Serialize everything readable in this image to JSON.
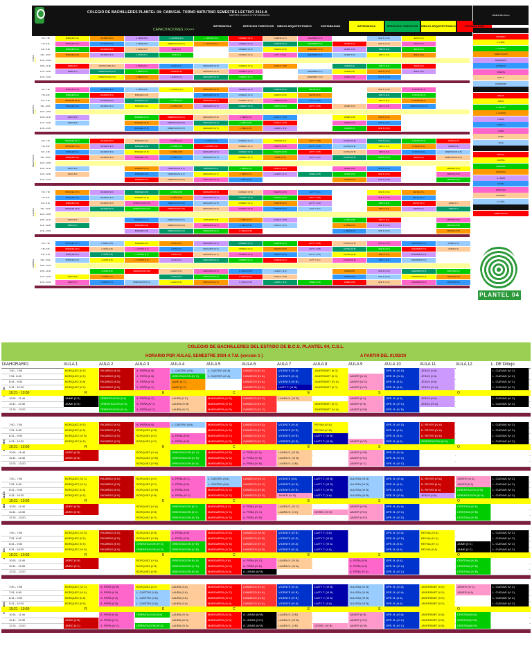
{
  "top_sheet": {
    "title": "COLEGIO DE BACHILLERES PLANTEL 04: CABUGAL TURNO MATUTINO SEMESTRE LECTIVO 2024-A",
    "subtitle": "MARTES CLASES IV INFORMADOS",
    "capacitaciones_label": "CAPACITACIONES >>>>>",
    "cap_tabs": [
      "INFORMATICA",
      "SERVICIOS TURISTICOS",
      "DIBUJO ARQUITECTONICO",
      "CONTABILIDAD",
      "INFORMATICA",
      "SERVICIOS TURISTICOS",
      "DIBUJO ARQUITECTONICO CONSTRUCCION",
      "CONTABILIDAD"
    ],
    "side_header": "SEMESTRE 2024-A",
    "logo_text": "PLANTEL 04"
  },
  "bottom_sheet": {
    "title": "COLEGIO DE BACHILLERES DEL ESTADO DE B.C.S. PLANTEL 04, C.S.L.",
    "subtitle_left": "HORARIO POR AULAS, SEMESTRE 2024-A  T.M.   (version 1 )",
    "subtitle_right": "A PARTIR DEL 01/02/24",
    "columns": [
      "DIA",
      "HORARIO",
      "AULA 1",
      "AULA 2",
      "AULA 3",
      "AULA 4",
      "AULA 5",
      "AULA 6",
      "AULA 7",
      "AULA 8",
      "AULA 9",
      "AULA 10",
      "AULA 11",
      "AULA 12",
      "L. DE Dibujo"
    ],
    "recess_letters": [
      "R",
      "E",
      "C",
      "E",
      "S",
      "O"
    ],
    "days": [
      "LUNES",
      "MARTES",
      "MIERCOLES",
      "JUEVES",
      "VIERNES"
    ],
    "times": [
      "7:00 - 7:50",
      "7:51- 8:40",
      "8:41 - 9:30",
      "9:31 - 10:20",
      "10:21 - 10:50",
      "10:51 - 11:40",
      "11:41 - 12:30",
      "12:31 - 13:20"
    ],
    "days_rows": [
      {
        "day": "LUNES",
        "rows": [
          [
            "BORQUEZ (II E)",
            "RICARDO (II D)",
            "A. PEÑA (II B)",
            "L. CASTRO (II A)",
            "L. CASTRO (VI A)",
            "CANSECO (IV A)",
            "VICENTE (IV A)",
            "JAVERSMET (II D)",
            "",
            "GPE. B. (VI D)",
            "JESUS (II A)",
            "",
            "L. CUEVAS (VI C)"
          ],
          [
            "BORQUEZ (II E)",
            "RICARDO (II D)",
            "A. PEÑA (II B)",
            "ORIENTACION (IV C)",
            "L. CASTRO (VI A)",
            "CANSECO (IV A)",
            "VICENTE (IV A)",
            "JAVERSMET (II D)",
            "JAVIER (IV A)",
            "GPE. B. (IV A)",
            "JESUS (II A)",
            "",
            "L. CUEVAS (VI C)"
          ],
          [
            "BORQUEZ (II A)",
            "RICARDO (II D)",
            "A. PEÑA (II B)",
            "JAVIE (II C)",
            "",
            "CANSECO (IV A)",
            "VICENTE (IV B)",
            "JAVERSMET (IV A)",
            "JAVIER (IV D)",
            "GPE. B. (II A)",
            "JESUS (II A)",
            "",
            "L. CUEVAS (VI C)"
          ],
          [
            "BORQUEZ (II E)",
            "RICARDO (II D)",
            "A. PEÑA (II C)",
            "JAVIE (II C)",
            "",
            "CANSECO (IV A)",
            "LAITY T. (VI B)",
            "JAVERSMET (II C)",
            "JAVIER (IV D)",
            "GPE. B. (II A)",
            "JESUS (IV A)",
            "",
            "L. CUEVAS (VI C)"
          ],
          [
            "RECESO"
          ],
          [
            "JAIME (II D)",
            "ORIENTACION (II A)",
            "A. PEÑA (II C)",
            "LAURA (II C)",
            "MARGARITA (IV D)",
            "CANSECO (IV C)",
            "LAURA S. (VI B)",
            "",
            "JAVIER (II A)",
            "GPE. B. (II A)",
            "JESUS (II A)",
            "",
            "L. CUEVAS (VI C)"
          ],
          [
            "JAIME (II D)",
            "ORIENTACION (IV A)",
            "A. PEÑA (IV C)",
            "LAURA (IV B)",
            "MARGARITA (IV D)",
            "CANSECO (IV C)",
            "",
            "JAVERSMET (II C)",
            "JAVIER (II B)",
            "GPE. B. (VI C)",
            "JESUS (IV A)",
            "",
            "L. CUEVAS (VI C)"
          ],
          [
            "",
            "ORIENTACION (IV A)",
            "A. PEÑA (IV C)",
            "LAURA (IV C)",
            "MARGARITA (IV D)",
            "CANSECO (IV C)",
            "",
            "JAVERSMET (VI A)",
            "JAVIER (VI B)",
            "GPE. B. (IV B)",
            "",
            "",
            ""
          ]
        ]
      },
      {
        "day": "MARTES",
        "rows": [
          [
            "BORQUEZ (II E)",
            "RICARDO (II D)",
            "A. PEÑA (II B)",
            "L. CASTRO (II A)",
            "MARGARITA (IV D)",
            "CANSECO (IV A)",
            "VICENTE (IV A)",
            "REYNA (VI A)",
            "",
            "GPE. B. (VI D)",
            "D. REYES (IV A)",
            "",
            "L. CUEVAS (VI C)"
          ],
          [
            "BORQUEZ (II A)",
            "RICARDO (II D)",
            "BORQUEZ (II B)",
            "",
            "MARGARITA (IV D)",
            "CANSECO (IV C)",
            "VICENTE (IV B)",
            "REYNA (VI B)",
            "",
            "GPE. B. (II A)",
            "D. REYES (IV A)",
            "",
            "L. CUEVAS (VI C)"
          ],
          [
            "BORQUEZ (VI B)",
            "RICARDO (II D)",
            "BORQUEZ (II E)",
            "A. PEÑA (II B)",
            "MARGARITA (IV C)",
            "CANSECO (IV C)",
            "VICENTE (VI B)",
            "LAITY T. (VI B)",
            "",
            "GPE. B. (II A)",
            "D. REYES (IV A)",
            "",
            "L. CUEVAS (VI C)"
          ],
          [
            "BORQUEZ (II E)",
            "RICARDO (II D)",
            "BORQUEZ (II E)",
            "A. PEÑA (II B)",
            "MARGARITA (IV D)",
            "CANSECO (IV C)",
            "VICENTE (IV B)",
            "LAITY T. (VI B)",
            "JAVIER (IV D)",
            "GPE. B. (II A)",
            "ORIENTACION (IV A)",
            "",
            "L. CUEVAS (VI C)"
          ],
          [
            "RECESO"
          ],
          [
            "JAIRO (II B)",
            "",
            "BORQUEZ (VI A)",
            "ORIENTACION (IV C)",
            "MARGARITA (VI D)",
            "A. PEÑA (IV A)",
            "LAURA S. (IV B)",
            "",
            "JAVIER (VI B)",
            "GPE. B. (IV A)",
            "",
            "",
            ""
          ],
          [
            "JAIRO (II B)",
            "",
            "BORQUEZ (VI B)",
            "ORIENTACION (IV D)",
            "MARGARITA (IV D)",
            "A. PEÑA (VI B)",
            "LAURA S. (VI B)",
            "",
            "JAVIER (VI D)",
            "GPE. B. (VI C)",
            "",
            "",
            ""
          ],
          [
            "",
            "",
            "BORQUEZ (VI B)",
            "ORIENTACION (IV A)",
            "MARGARITA (IV D)",
            "A. PEÑA (IV B)",
            "LAURA S. (II B)",
            "",
            "JAVIER (II C)",
            "GPE. B. (VI C)",
            "",
            "",
            ""
          ]
        ]
      },
      {
        "day": "MIERCOLES",
        "rows": [
          [
            "BORQUEZ (VI C)",
            "RICARDO (II D)",
            "BORQUEZ (II E)",
            "A. PEÑA (II C)",
            "L. CASTRO (II A)",
            "CANSECO (IV C)",
            "VICENTE (II A)",
            "LAITY T. (VI B)",
            "JULISSA (VI B)",
            "GPE. B. (VI A)",
            "D. REYES (VI A)",
            "JAVIER (VI A)",
            "L. CUEVAS (VI C)"
          ],
          [
            "BORQUEZ (VI A)",
            "RICARDO (II D)",
            "BORQUEZ (II E)",
            "A. PEÑA (II B)",
            "L. CASTRO (II A)",
            "CANSECO (IV C)",
            "VICENTE (IV B)",
            "LAITY T. (VI D)",
            "JULISSA (VI B)",
            "GPE. B. (II A)",
            "D. REYES (II A)",
            "JAVIER (II A)",
            "L. CUEVAS (VI C)"
          ],
          [
            "BORQUEZ (II A)",
            "RICARDO (II D)",
            "BORQUEZ (VI B)",
            "A. PEÑA (II B)",
            "MARGARITA (IV C)",
            "CANSECO (IV D)",
            "VICENTE (IV B)",
            "LAITY T. (VI B)",
            "JULISSA (VI B)",
            "GPE. B. (II A)",
            "D. REYES (II A)",
            "ORIENTACION (II B)",
            "L. CUEVAS (VI C)"
          ],
          [
            "BORQUEZ (II E)",
            "RICARDO (II D)",
            "BORQUEZ (II B)",
            "A. PEÑA (IV C)",
            "MARGARITA (IV C)",
            "CANSECO (IV C)",
            "JAVIER (IV D)",
            "LAITY T. (II A)",
            "JULISSA (IV B)",
            "GPE. B. (VI A)",
            "JESUS (II A)",
            "ORIENTACION (IV A)",
            "L. CUEVAS (VI C)"
          ],
          [
            "RECESO"
          ],
          [
            "JAIRO (II B)",
            "",
            "BORQUEZ (VI A)",
            "ORIENTACION (II C)",
            "MARGARITA (II C)",
            "A. PEÑA (IV A)",
            "LAURA S. (IV C)",
            "",
            "JAVIER (IV B)",
            "GPE. B. (IV A)",
            "",
            "CRISTINA (IV A)",
            ""
          ],
          [
            "JAIRO (II B)",
            "",
            "BORQUEZ (II B)",
            "ORIENTACION (II C)",
            "MARGARITA (IV C)",
            "A. PEÑA (IV C)",
            "LAURA S. (II C)",
            "GISSEL (VI B)",
            "JAVIER (VI D)",
            "GPE. B. (VI C)",
            "",
            "CRISTINA (VI B)",
            ""
          ],
          [
            "",
            "",
            "BORQUEZ (II D)",
            "ORIENTACION (IV D)",
            "MARGARITA (IV D)",
            "A. PEÑA (IV B)",
            "",
            "",
            "JAVIER (VI D)",
            "GPE. B. (VI D)",
            "",
            "CRISTINA (IV B)",
            ""
          ]
        ]
      },
      {
        "day": "JUEVES",
        "rows": [
          [
            "BORQUEZ (VI D)",
            "RICARDO (II D)",
            "BORQUEZ (II B)",
            "A. PEÑA (II B)",
            "MARGARITA (VI D)",
            "CANSECO (VI B)",
            "VICENTE (IV B)",
            "LAITY T. (II A)",
            "",
            "GPE. B. (VI A)",
            "REYNA (VI A)",
            "",
            "L. CUEVAS (VI C)"
          ],
          [
            "BORQUEZ (II E)",
            "RICARDO (II D)",
            "BORQUEZ (VI B)",
            "A. PEÑA (II B)",
            "MARGARITA (IV D)",
            "CANSECO (IV B)",
            "VICENTE (IV B)",
            "LAITY T. (VI B)",
            "",
            "GPE. B. (VI D)",
            "REYNA (IV A)",
            "",
            "L. CUEVAS (VI C)"
          ],
          [
            "BORQUEZ (II E)",
            "RICARDO (II D)",
            "ORIENTACION (IV D)",
            "ORIENTACION (VI B)",
            "MARGARITA (IV D)",
            "CANSECO (IV C)",
            "VICENTE (IV A)",
            "LAITY T. (VI A)",
            "",
            "GPE. B. (II A)",
            "REYNA (IV C)",
            "JAIME (II C)",
            "L. CUEVAS (VI C)"
          ],
          [
            "BORQUEZ (VI B)",
            "RICARDO (II D)",
            "ORIENTACION (VI D)",
            "ORIENTACION (VI B)",
            "MARGARITA (IV D)",
            "CANSECO (VI B)",
            "VICENTE (IV A)",
            "LAITY T. (II A)",
            "",
            "GPE. B. (II A)",
            "REYNA (II A)",
            "JAIME (II C)",
            "L. CUEVAS (VI C)"
          ],
          [
            "RECESO"
          ],
          [
            "JAIRO (II B)",
            "",
            "BORQUEZ (VI A)",
            "ORIENTACION (IV A)",
            "MARGARITA (II B)",
            "A. PEÑA (IV C)",
            "LAURA S. (IV B)",
            "",
            "A. PEÑA (II B)",
            "GPE. B. (II A)",
            "",
            "CRISTINA (IV B)",
            ""
          ],
          [
            "JAIRO (II C)",
            "",
            "BORQUEZ (II B)",
            "ORIENTACION (VI D)",
            "MARGARITA (IV C)",
            "A. PEÑA (IV B)",
            "LAURA S. (IV A)",
            "",
            "A. PEÑA (II A)",
            "GPE. B. (VI C)",
            "",
            "CRISTINA (VI B)",
            ""
          ],
          [
            "",
            "",
            "BORQUEZ (II B)",
            "ORIENTACION (IV A)",
            "MARGARITA (IV A)",
            "G. URIAS (IV B)",
            "",
            "",
            "A. PEÑA (IV A)",
            "GPE. B. (VI C)",
            "",
            "CRISTINA (IV B)",
            ""
          ]
        ]
      },
      {
        "day": "VIERNES",
        "rows": [
          [
            "BORQUEZ (VI C)",
            "A. PEÑA (IV B)",
            "BORQUEZ (II E)",
            "LAURA (II A)",
            "MARGARITA (IV C)",
            "CANSECO (IV A)",
            "VICENTE (IV A)",
            "LAITY T. (VI B)",
            "JULISSA (VI B)",
            "GPE. B. (VI A)",
            "JAVERSMET (II D)",
            "JAVIER (VI C)",
            "L. CUEVAS (VI C)"
          ],
          [
            "BORQUEZ (VI A)",
            "A. PEÑA (II B)",
            "L. CASTRO (II A)",
            "LAURA (II A)",
            "MARGARITA (IV C)",
            "CANSECO (IV A)",
            "VICENTE (IV B)",
            "LAITY T. (VI B)",
            "JULISSA (VI B)",
            "GPE. B. (VI A)",
            "JAVERSMET (II D)",
            "JAVIER (II A)",
            "L. CUEVAS (VI C)"
          ],
          [
            "BORQUEZ (II A)",
            "A. PEÑA (II B)",
            "L. CASTRO (II A)",
            "LAURA (II A)",
            "MARGARITA (IV C)",
            "CANSECO (IV A)",
            "VICENTE (IV B)",
            "LAITY T. (VI A)",
            "JULISSA (VI B)",
            "GPE. B. (II A)",
            "JAVERSMET (II D)",
            "",
            "L. CUEVAS (VI C)"
          ],
          [
            "BORQUEZ (II E)",
            "A. PEÑA (II B)",
            "L. CASTRO (II A)",
            "LAURA (II A)",
            "MARGARITA (IV A)",
            "CANSECO (IV A)",
            "VICENTE (IV A)",
            "LAITY T. (II A)",
            "JULISSA (VI B)",
            "GPE. B. (II A)",
            "JAVERSMET (II D)",
            "",
            "L. CUEVAS (VI C)"
          ],
          [
            "RECESO"
          ],
          [
            "",
            "A. PEÑA (II B)",
            "ORIENTACION (II B)",
            "LAURA (IV A)",
            "MARGARITA (IV A)",
            "G. URIAS (IV B)",
            "LAURA S. (II B)",
            "",
            "JAVIER (II B)",
            "GPE. B. (VI A)",
            "JAVERSMET (II B)",
            "CRISTINA(VI A)",
            ""
          ],
          [
            "JAIRO (II B)",
            "A. PEÑA (II C)",
            "",
            "LAURA (IV A)",
            "MARGARITA (IV A)",
            "G. URIAS (VI C)",
            "LAURA S. (IV B)",
            "",
            "JAVIER (VI D)",
            "GPE. B. (VI C)",
            "JAVERSMET (II B)",
            "CRISTINA(VI B)",
            ""
          ],
          [
            "JAIRO (II C)",
            "A. PEÑA (IV C)",
            "ORIENTACION (IV A)",
            "LAURA (IV A)",
            "MARGARITA (IV A)",
            "G. URIAS (IV B)",
            "LAURA S. (II B)",
            "GISSEL (VI B)",
            "JAVIER (IV B)",
            "GPE. B. (VI C)",
            "JAVERSMET (II B)",
            "CRISTINA(IV B)",
            ""
          ]
        ]
      }
    ],
    "colors": {
      "BORQUEZ": "#ffff00",
      "RICARDO": "#c00000",
      "A. PEÑA": "#ff66cc",
      "L. CASTRO": "#99ccff",
      "ORIENTACION": "#00cc00",
      "MARGARITA": "#ff0000",
      "CANSECO": "#ff3333",
      "VICENTE": "#0033cc",
      "LAITY T.": "#0000aa",
      "JAVERSMET": "#ffff00",
      "JAVIER": "#ff99cc",
      "GPE. B.": "#0033cc",
      "JESUS": "#cc99ff",
      "D. REYES": "#cc0000",
      "L. CUEVAS": "#000000",
      "LAURA": "#ffcc99",
      "LAURA S.": "#ffcc99",
      "JAIME": "#000000",
      "JAIRO": "#cc0000",
      "JAIVE": "#ffff00",
      "JAVIE": "#ff9900",
      "REYNA": "#ffff00",
      "JULISSA": "#99ccff",
      "CRISTINA": "#00cc00",
      "CRISTINA(": "#00cc00",
      "G. URIAS": "#000000",
      "GISSEL": "#ff99cc"
    }
  }
}
